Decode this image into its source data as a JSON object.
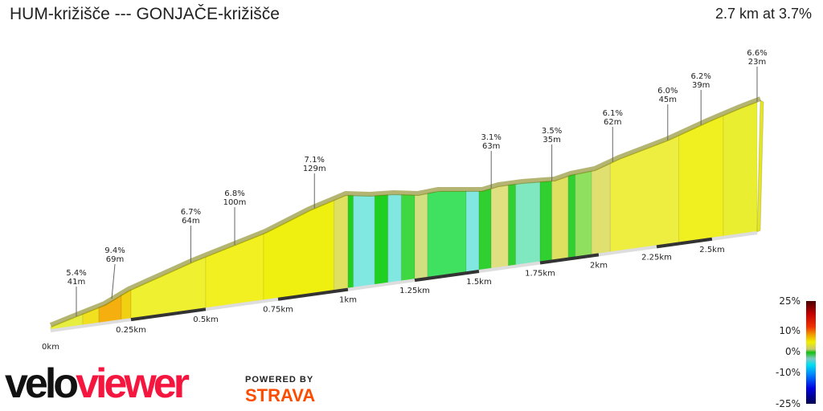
{
  "header": {
    "title": "HUM-križišče ---  GONJAČE-križišče",
    "summary": "2.7 km at 3.7%"
  },
  "chart_data": {
    "type": "area",
    "title": "HUM-križišče ---  GONJAČE-križišče",
    "distance_km": 2.7,
    "avg_grade_pct": 3.7,
    "x_ticks": [
      {
        "km": 0,
        "label": "0km"
      },
      {
        "km": 0.25,
        "label": "0.25km"
      },
      {
        "km": 0.5,
        "label": "0.5km"
      },
      {
        "km": 0.75,
        "label": "0.75km"
      },
      {
        "km": 1,
        "label": "1km"
      },
      {
        "km": 1.25,
        "label": "1.25km"
      },
      {
        "km": 1.5,
        "label": "1.5km"
      },
      {
        "km": 1.75,
        "label": "1.75km"
      },
      {
        "km": 2,
        "label": "2km"
      },
      {
        "km": 2.25,
        "label": "2.25km"
      },
      {
        "km": 2.5,
        "label": "2.5km"
      }
    ],
    "annotations": [
      {
        "km": 0.08,
        "grade": "5.4%",
        "length": "41m"
      },
      {
        "km": 0.2,
        "grade": "9.4%",
        "length": "69m"
      },
      {
        "km": 0.45,
        "grade": "6.7%",
        "length": "64m"
      },
      {
        "km": 0.6,
        "grade": "6.8%",
        "length": "100m"
      },
      {
        "km": 0.88,
        "grade": "7.1%",
        "length": "129m"
      },
      {
        "km": 1.55,
        "grade": "3.1%",
        "length": "63m"
      },
      {
        "km": 1.8,
        "grade": "3.5%",
        "length": "35m"
      },
      {
        "km": 2.06,
        "grade": "6.1%",
        "length": "62m"
      },
      {
        "km": 2.3,
        "grade": "6.0%",
        "length": "45m"
      },
      {
        "km": 2.45,
        "grade": "6.2%",
        "length": "39m"
      },
      {
        "km": 2.7,
        "grade": "6.6%",
        "length": "23m"
      }
    ],
    "segments": [
      {
        "from": 0,
        "to": 0.1,
        "color": "#e8ee40"
      },
      {
        "from": 0.1,
        "to": 0.15,
        "color": "#f0e020"
      },
      {
        "from": 0.15,
        "to": 0.22,
        "color": "#f5b010"
      },
      {
        "from": 0.22,
        "to": 0.25,
        "color": "#f0d010"
      },
      {
        "from": 0.25,
        "to": 0.5,
        "color": "#eef030"
      },
      {
        "from": 0.5,
        "to": 0.7,
        "color": "#f2f020"
      },
      {
        "from": 0.7,
        "to": 0.95,
        "color": "#f0f010"
      },
      {
        "from": 0.95,
        "to": 1.0,
        "color": "#e0e060"
      },
      {
        "from": 1.0,
        "to": 1.02,
        "color": "#20d020"
      },
      {
        "from": 1.02,
        "to": 1.1,
        "color": "#80e8e0"
      },
      {
        "from": 1.1,
        "to": 1.15,
        "color": "#20d020"
      },
      {
        "from": 1.15,
        "to": 1.2,
        "color": "#80e8e0"
      },
      {
        "from": 1.2,
        "to": 1.25,
        "color": "#40d840"
      },
      {
        "from": 1.25,
        "to": 1.3,
        "color": "#d0e080"
      },
      {
        "from": 1.3,
        "to": 1.45,
        "color": "#40e060"
      },
      {
        "from": 1.45,
        "to": 1.5,
        "color": "#80e8e0"
      },
      {
        "from": 1.5,
        "to": 1.55,
        "color": "#30d030"
      },
      {
        "from": 1.55,
        "to": 1.62,
        "color": "#e0e080"
      },
      {
        "from": 1.62,
        "to": 1.65,
        "color": "#30d030"
      },
      {
        "from": 1.65,
        "to": 1.75,
        "color": "#80e8c0"
      },
      {
        "from": 1.75,
        "to": 1.8,
        "color": "#30d030"
      },
      {
        "from": 1.8,
        "to": 1.87,
        "color": "#e0e060"
      },
      {
        "from": 1.87,
        "to": 1.9,
        "color": "#30d030"
      },
      {
        "from": 1.9,
        "to": 1.97,
        "color": "#90e060"
      },
      {
        "from": 1.97,
        "to": 2.05,
        "color": "#e0e070"
      },
      {
        "from": 2.05,
        "to": 2.35,
        "color": "#eeee40"
      },
      {
        "from": 2.35,
        "to": 2.55,
        "color": "#f0f020"
      },
      {
        "from": 2.55,
        "to": 2.7,
        "color": "#eaee30"
      }
    ],
    "legend": {
      "labels": [
        "25%",
        "10%",
        "0%",
        "-10%",
        "-25%"
      ]
    }
  },
  "branding": {
    "velo": "velo",
    "viewer": "viewer",
    "powered_by": "POWERED BY",
    "strava": "STRAVA"
  }
}
